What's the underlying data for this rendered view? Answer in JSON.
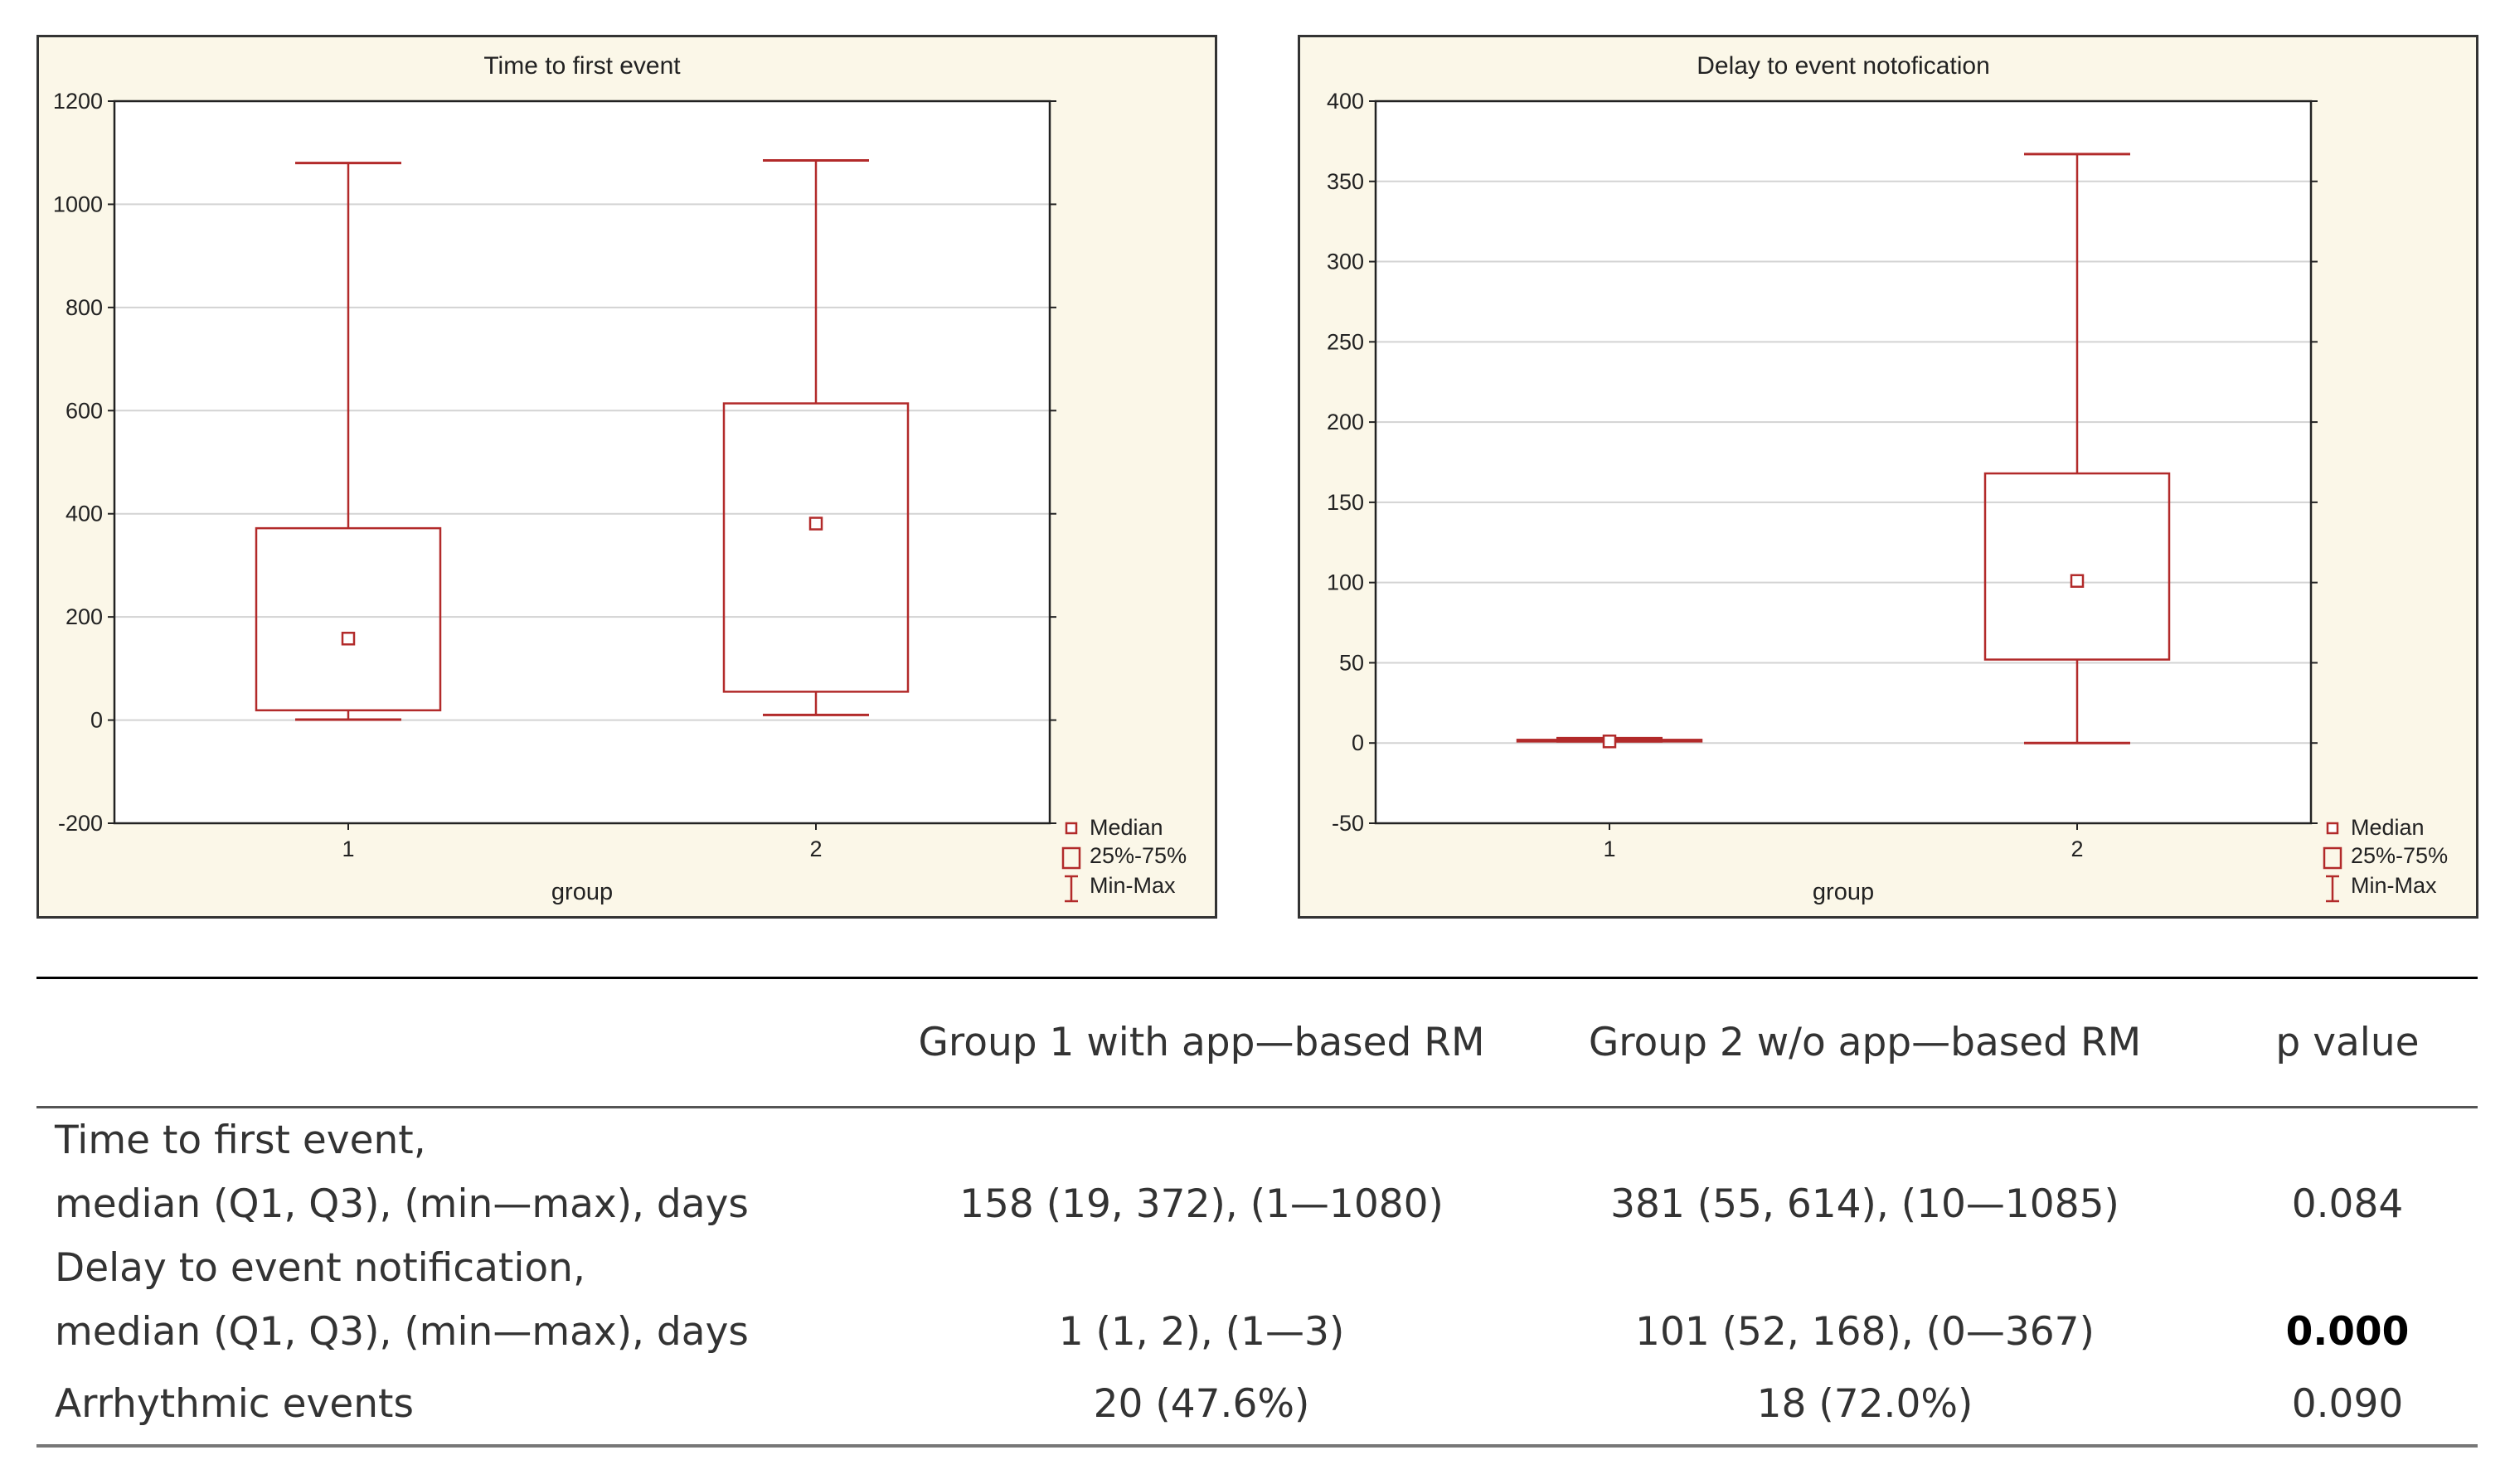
{
  "chart_data": [
    {
      "type": "boxplot",
      "title": "Time to first event",
      "xlabel": "group",
      "ylabel": "",
      "categories": [
        "1",
        "2"
      ],
      "ylim": [
        -200,
        1200
      ],
      "yticks": [
        -200,
        0,
        200,
        400,
        600,
        800,
        1000,
        1200
      ],
      "boxes": [
        {
          "category": "1",
          "min": 1,
          "q1": 19,
          "median": 158,
          "q3": 372,
          "max": 1080
        },
        {
          "category": "2",
          "min": 10,
          "q1": 55,
          "median": 381,
          "q3": 614,
          "max": 1085
        }
      ],
      "legend": {
        "placement": "bottom-right",
        "entries": [
          "Median",
          "25%-75%",
          "Min-Max"
        ]
      },
      "grid": true,
      "color": "#b22a2a"
    },
    {
      "type": "boxplot",
      "title": "Delay to event notofication",
      "xlabel": "group",
      "ylabel": "",
      "categories": [
        "1",
        "2"
      ],
      "ylim": [
        -50,
        400
      ],
      "yticks": [
        -50,
        0,
        50,
        100,
        150,
        200,
        250,
        300,
        350,
        400
      ],
      "boxes": [
        {
          "category": "1",
          "min": 1,
          "q1": 1,
          "median": 1,
          "q3": 2,
          "max": 3
        },
        {
          "category": "2",
          "min": 0,
          "q1": 52,
          "median": 101,
          "q3": 168,
          "max": 367
        }
      ],
      "legend": {
        "placement": "bottom-right",
        "entries": [
          "Median",
          "25%-75%",
          "Min-Max"
        ]
      },
      "grid": true,
      "color": "#b22a2a"
    }
  ],
  "table": {
    "headers": [
      "",
      "Group 1 with app—based RM",
      "Group 2 w/o app—based RM",
      "p value"
    ],
    "rows": [
      {
        "label_line1": "Time to first event,",
        "label_line2": "median (Q1, Q3), (min—max), days",
        "group1": "158 (19, 372), (1—1080)",
        "group2": "381 (55, 614), (10—1085)",
        "p_value": "0.084",
        "p_bold": false
      },
      {
        "label_line1": "Delay to event notification,",
        "label_line2": "median (Q1, Q3), (min—max), days",
        "group1": "1 (1, 2), (1—3)",
        "group2": "101 (52, 168), (0—367)",
        "p_value": "0.000",
        "p_bold": true
      },
      {
        "label_line1": "Arrhythmic events",
        "label_line2": "",
        "group1": "20 (47.6%)",
        "group2": "18 (72.0%)",
        "p_value": "0.090",
        "p_bold": false
      }
    ]
  }
}
